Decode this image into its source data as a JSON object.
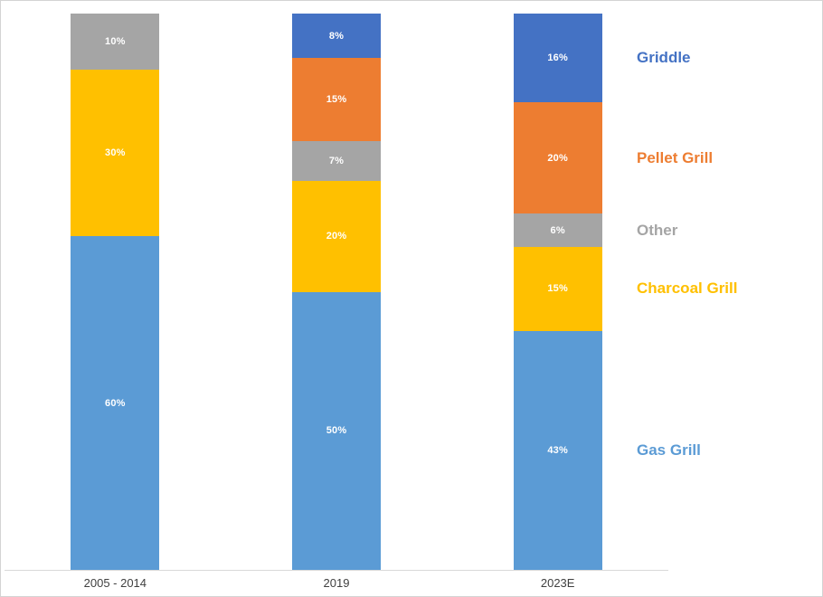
{
  "chart_data": {
    "type": "bar",
    "stacked": true,
    "orientation": "vertical",
    "title": "",
    "xlabel": "",
    "ylabel": "",
    "ylim": [
      0,
      100
    ],
    "unit": "%",
    "grid": false,
    "y_axis_visible": false,
    "legend_position": "right",
    "categories": [
      "2005 - 2014",
      "2019",
      "2023E"
    ],
    "series": [
      {
        "name": "Gas Grill",
        "color": "#5B9BD5",
        "values": [
          60,
          50,
          43
        ],
        "labels": [
          "60%",
          "50%",
          "43%"
        ]
      },
      {
        "name": "Charcoal Grill",
        "color": "#FFC000",
        "values": [
          30,
          20,
          15
        ],
        "labels": [
          "30%",
          "20%",
          "15%"
        ]
      },
      {
        "name": "Other",
        "color": "#A5A5A5",
        "values": [
          10,
          7,
          6
        ],
        "labels": [
          "10%",
          "7%",
          "6%"
        ]
      },
      {
        "name": "Pellet Grill",
        "color": "#ED7D31",
        "values": [
          0,
          15,
          20
        ],
        "labels": [
          "",
          "15%",
          "20%"
        ]
      },
      {
        "name": "Griddle",
        "color": "#4472C4",
        "values": [
          0,
          8,
          16
        ],
        "labels": [
          "",
          "8%",
          "16%"
        ]
      }
    ],
    "legend": [
      {
        "label": "Griddle",
        "series": "Griddle"
      },
      {
        "label": "Pellet Grill",
        "series": "Pellet Grill"
      },
      {
        "label": "Other",
        "series": "Other"
      },
      {
        "label": "Charcoal Grill",
        "series": "Charcoal Grill"
      },
      {
        "label": "Gas Grill",
        "series": "Gas Grill"
      }
    ],
    "colors": {
      "axis_line": "#d9d9d9",
      "category_text": "#404040",
      "data_label_text": "#ffffff",
      "background": "#ffffff"
    }
  }
}
